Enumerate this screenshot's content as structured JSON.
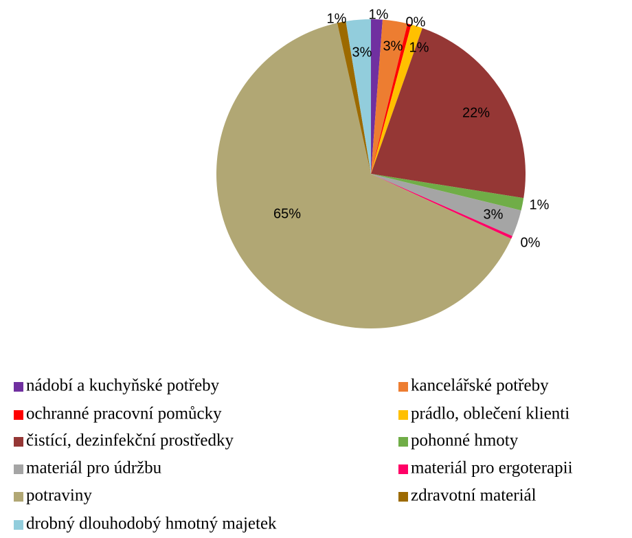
{
  "chart_data": {
    "type": "pie",
    "categories": [
      "nádobí a kuchyňské potřeby",
      "kancelářské potřeby",
      "ochranné pracovní pomůcky",
      "prádlo, oblečení klienti",
      "čistící, dezinfekční prostředky",
      "pohonné hmoty",
      "materiál pro údržbu",
      "materiál pro ergoterapii",
      "potraviny",
      "zdravotní materiál",
      "drobný dlouhodobý hmotný majetek"
    ],
    "values": [
      1.2,
      2.6,
      0.4,
      1.2,
      22.1,
      1.3,
      2.8,
      0.3,
      64.6,
      0.9,
      2.6
    ],
    "value_labels": [
      "1%",
      "3%",
      "0%",
      "1%",
      "22%",
      "1%",
      "3%",
      "0%",
      "65%",
      "1%",
      "3%"
    ],
    "colors": [
      "#7030a0",
      "#ed7d31",
      "#ff0000",
      "#ffc000",
      "#953735",
      "#70ad47",
      "#a5a5a5",
      "#ff0066",
      "#b1a774",
      "#9c6a00",
      "#92cddc"
    ],
    "legend": "bottom"
  }
}
